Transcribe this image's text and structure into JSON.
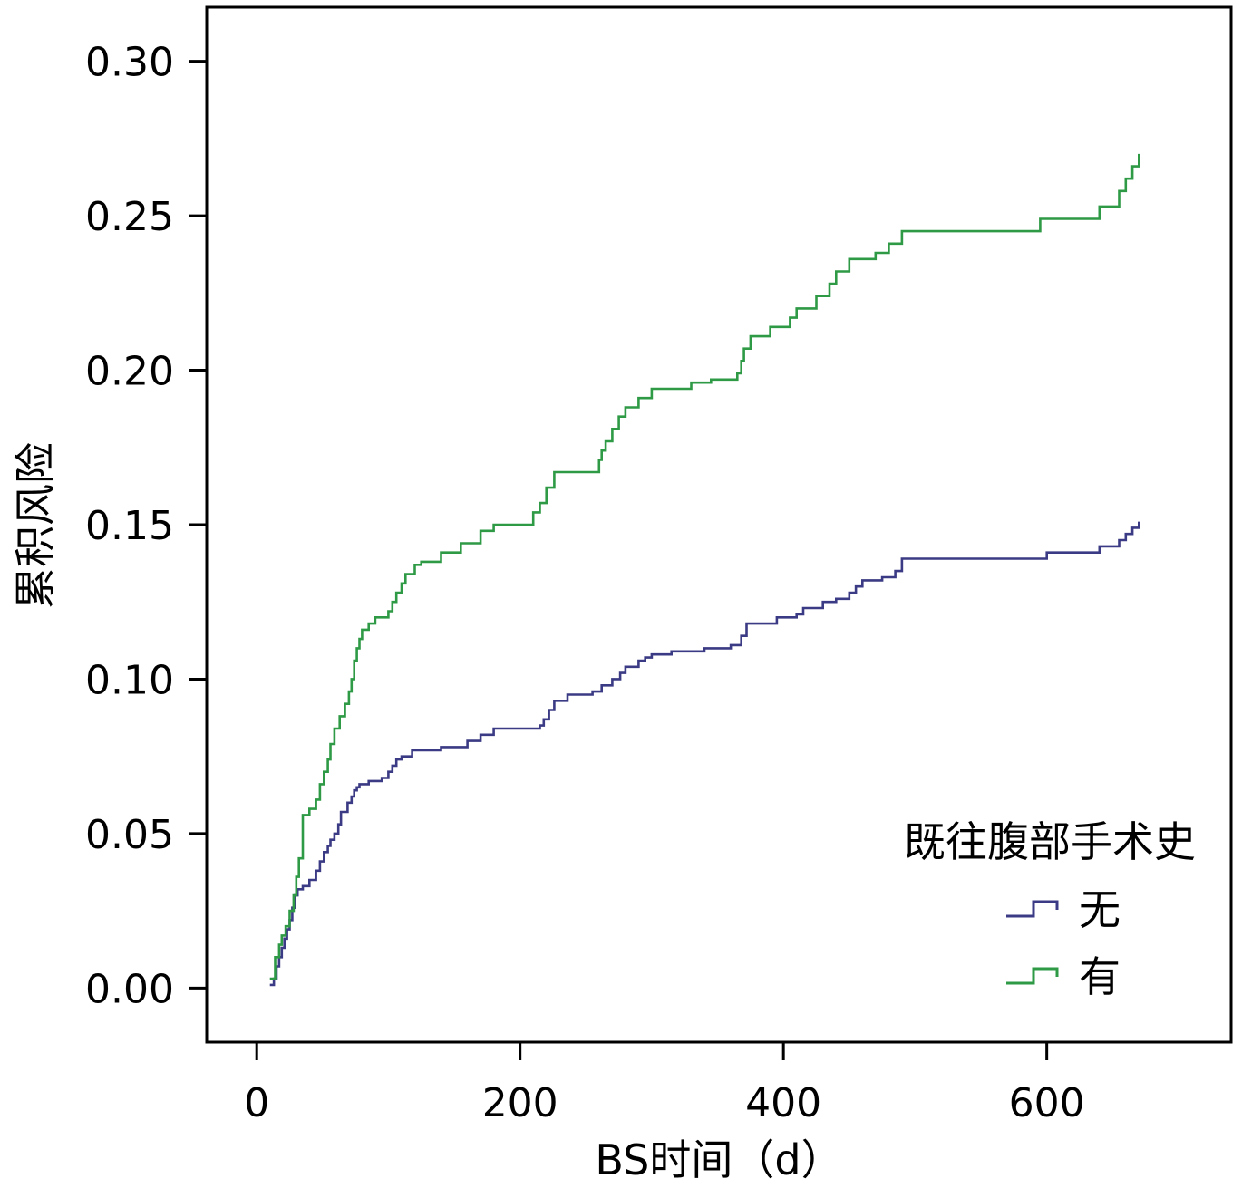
{
  "chart_data": {
    "type": "line",
    "step": true,
    "xlabel": "BS时间（d）",
    "ylabel": "累积风险",
    "xlim": [
      -38,
      740
    ],
    "ylim": [
      -0.0175,
      0.3175
    ],
    "xticks": [
      0,
      200,
      400,
      600
    ],
    "xtick_labels": [
      "0",
      "200",
      "400",
      "600"
    ],
    "yticks": [
      0.0,
      0.05,
      0.1,
      0.15,
      0.2,
      0.25,
      0.3
    ],
    "ytick_labels": [
      "0.00",
      "0.05",
      "0.10",
      "0.15",
      "0.20",
      "0.25",
      "0.30"
    ],
    "grid": false,
    "legend": {
      "title": "既往腹部手术史",
      "position": "bottom-right"
    },
    "series": [
      {
        "name": "无",
        "color": "#3b3a84",
        "x": [
          10,
          13,
          15,
          17,
          19,
          21,
          23,
          25,
          27,
          29,
          31,
          35,
          40,
          45,
          48,
          51,
          54,
          56,
          59,
          62,
          64,
          69,
          72,
          74,
          76,
          78,
          85,
          95,
          100,
          103,
          106,
          110,
          118,
          125,
          140,
          160,
          170,
          180,
          215,
          218,
          222,
          226,
          236,
          255,
          262,
          270,
          276,
          280,
          290,
          295,
          300,
          305,
          315,
          340,
          360,
          368,
          372,
          375,
          395,
          410,
          415,
          430,
          440,
          450,
          455,
          460,
          475,
          485,
          490,
          600,
          640,
          655,
          660,
          665,
          670
        ],
        "y": [
          0.001,
          0.003,
          0.007,
          0.01,
          0.013,
          0.016,
          0.019,
          0.022,
          0.026,
          0.03,
          0.032,
          0.033,
          0.035,
          0.038,
          0.041,
          0.044,
          0.046,
          0.048,
          0.05,
          0.053,
          0.057,
          0.06,
          0.062,
          0.064,
          0.065,
          0.066,
          0.067,
          0.068,
          0.07,
          0.072,
          0.074,
          0.075,
          0.077,
          0.077,
          0.078,
          0.08,
          0.082,
          0.084,
          0.085,
          0.087,
          0.09,
          0.093,
          0.095,
          0.096,
          0.098,
          0.1,
          0.102,
          0.104,
          0.106,
          0.107,
          0.108,
          0.108,
          0.109,
          0.11,
          0.111,
          0.114,
          0.118,
          0.118,
          0.12,
          0.121,
          0.123,
          0.125,
          0.126,
          0.128,
          0.13,
          0.132,
          0.133,
          0.135,
          0.139,
          0.141,
          0.143,
          0.145,
          0.147,
          0.149,
          0.151
        ]
      },
      {
        "name": "有",
        "color": "#2e9a45",
        "x": [
          10,
          14,
          17,
          19,
          22,
          25,
          28,
          30,
          32,
          35,
          40,
          45,
          48,
          51,
          54,
          56,
          59,
          63,
          67,
          70,
          72,
          74,
          76,
          78,
          80,
          85,
          90,
          100,
          103,
          106,
          110,
          113,
          120,
          125,
          140,
          155,
          170,
          180,
          210,
          215,
          220,
          226,
          260,
          262,
          265,
          270,
          275,
          280,
          290,
          300,
          330,
          345,
          365,
          368,
          370,
          375,
          390,
          405,
          410,
          425,
          435,
          440,
          450,
          470,
          480,
          490,
          595,
          640,
          655,
          660,
          665,
          670
        ],
        "y": [
          0.003,
          0.01,
          0.014,
          0.017,
          0.02,
          0.025,
          0.03,
          0.036,
          0.042,
          0.056,
          0.058,
          0.061,
          0.066,
          0.07,
          0.074,
          0.079,
          0.084,
          0.088,
          0.092,
          0.096,
          0.1,
          0.106,
          0.11,
          0.113,
          0.116,
          0.118,
          0.12,
          0.122,
          0.125,
          0.128,
          0.131,
          0.134,
          0.137,
          0.138,
          0.141,
          0.144,
          0.148,
          0.15,
          0.154,
          0.157,
          0.162,
          0.167,
          0.171,
          0.174,
          0.177,
          0.181,
          0.185,
          0.188,
          0.191,
          0.194,
          0.196,
          0.197,
          0.199,
          0.203,
          0.207,
          0.211,
          0.214,
          0.217,
          0.22,
          0.224,
          0.228,
          0.232,
          0.236,
          0.238,
          0.241,
          0.245,
          0.249,
          0.253,
          0.258,
          0.262,
          0.266,
          0.27
        ]
      }
    ]
  }
}
